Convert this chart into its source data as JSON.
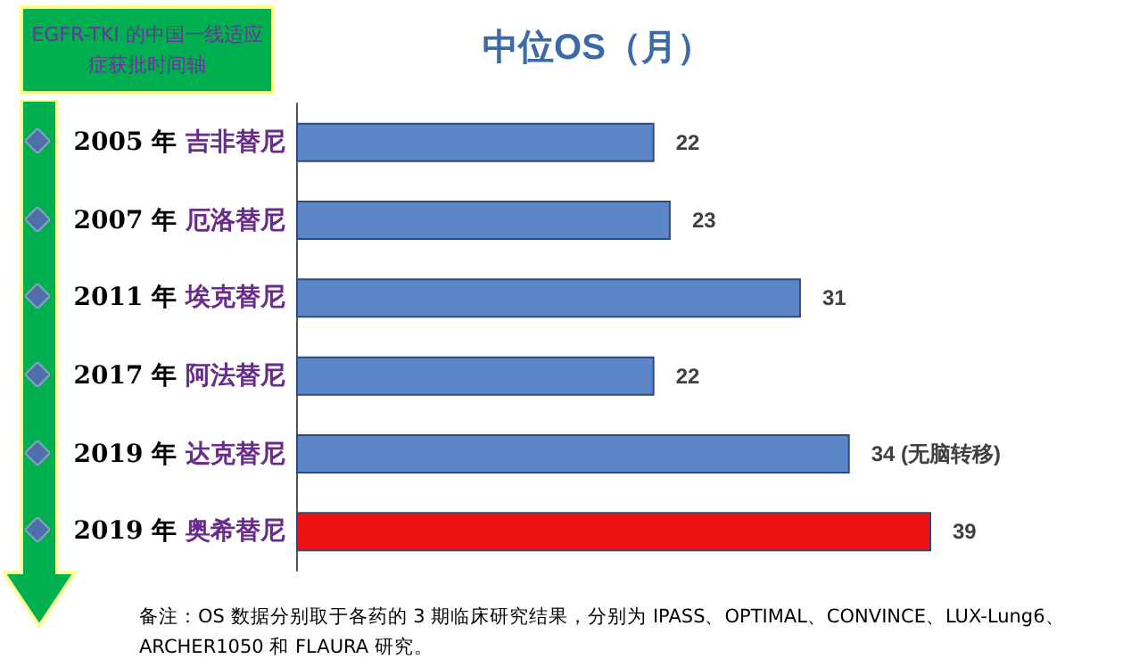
{
  "chart_data": {
    "type": "bar",
    "orientation": "horizontal",
    "title": "中位OS（月）",
    "subtitle": "EGFR-TKI 的中国一线适应症获批时间轴",
    "categories": [
      "2005 年 吉非替尼",
      "2007 年 厄洛替尼",
      "2011 年 埃克替尼",
      "2017 年 阿法替尼",
      "2019 年 达克替尼",
      "2019 年 奥希替尼"
    ],
    "values": [
      22,
      23,
      31,
      22,
      34,
      39
    ],
    "colors": [
      "#5b86c8",
      "#5b86c8",
      "#5b86c8",
      "#5b86c8",
      "#5b86c8",
      "#ee1111"
    ],
    "value_labels": [
      "22",
      "23",
      "31",
      "22",
      "34 (无脑转移)",
      "39"
    ],
    "annotations": [
      "备注：OS 数据分别取于各药的 3 期临床研究结果，分别为 IPASS、OPTIMAL、CONVINCE、LUX-Lung6、ARCHER1050 和 FLAURA 研究。"
    ]
  }
}
